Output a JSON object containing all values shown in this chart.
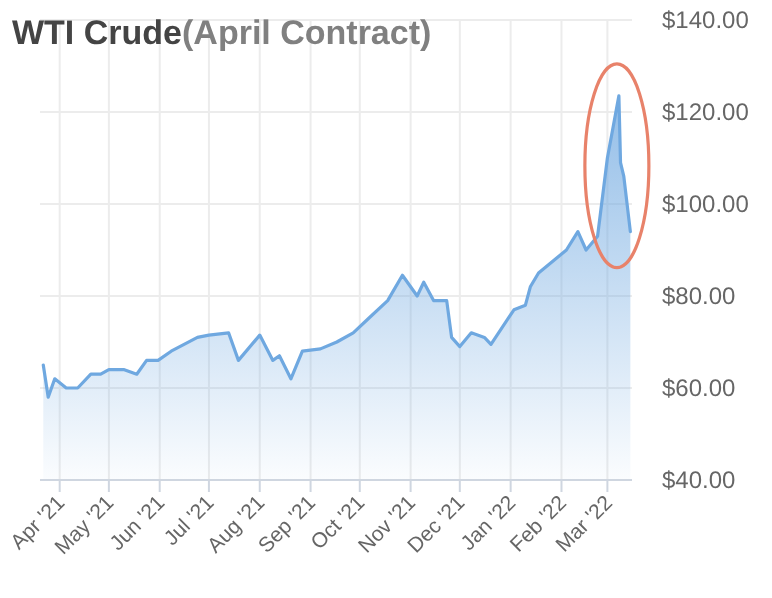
{
  "chart_data": {
    "type": "area",
    "title": "WTI Crude",
    "subtitle": "(April Contract)",
    "x": [
      "2021-03-22",
      "2021-03-25",
      "2021-03-29",
      "2021-04-05",
      "2021-04-12",
      "2021-04-20",
      "2021-04-26",
      "2021-05-01",
      "2021-05-10",
      "2021-05-18",
      "2021-05-24",
      "2021-05-31",
      "2021-06-08",
      "2021-06-24",
      "2021-07-01",
      "2021-07-13",
      "2021-07-19",
      "2021-08-01",
      "2021-08-09",
      "2021-08-13",
      "2021-08-20",
      "2021-08-27",
      "2021-09-07",
      "2021-09-17",
      "2021-09-27",
      "2021-10-06",
      "2021-10-18",
      "2021-10-27",
      "2021-11-05",
      "2021-11-09",
      "2021-11-15",
      "2021-11-23",
      "2021-11-26",
      "2021-12-01",
      "2021-12-08",
      "2021-12-16",
      "2021-12-20",
      "2022-01-03",
      "2022-01-10",
      "2022-01-13",
      "2022-01-18",
      "2022-02-04",
      "2022-02-11",
      "2022-02-16",
      "2022-02-23",
      "2022-03-01",
      "2022-03-08",
      "2022-03-09",
      "2022-03-11",
      "2022-03-15"
    ],
    "series": [
      {
        "color": "#6fa8e0",
        "values": [
          65,
          58,
          62,
          60,
          60,
          63,
          63,
          64,
          64,
          63,
          66,
          66,
          68,
          71,
          71.5,
          72,
          66,
          71.5,
          66,
          67,
          62,
          68,
          68.5,
          70,
          72,
          75,
          79,
          84.5,
          80,
          83,
          79,
          79,
          71,
          69,
          72,
          71,
          69.5,
          77,
          78,
          82,
          85,
          90,
          94,
          90,
          93,
          110,
          123.5,
          109,
          106,
          94
        ]
      }
    ],
    "xlim": [
      "2021-03-20",
      "2022-03-16"
    ],
    "xticks": [
      {
        "value": "2021-04-01",
        "label": "Apr '21"
      },
      {
        "value": "2021-05-01",
        "label": "May '21"
      },
      {
        "value": "2021-06-01",
        "label": "Jun '21"
      },
      {
        "value": "2021-07-01",
        "label": "Jul '21"
      },
      {
        "value": "2021-08-01",
        "label": "Aug '21"
      },
      {
        "value": "2021-09-01",
        "label": "Sep '21"
      },
      {
        "value": "2021-10-01",
        "label": "Oct '21"
      },
      {
        "value": "2021-11-01",
        "label": "Nov '21"
      },
      {
        "value": "2021-12-01",
        "label": "Dec '21"
      },
      {
        "value": "2022-01-01",
        "label": "Jan '22"
      },
      {
        "value": "2022-02-01",
        "label": "Feb '22"
      },
      {
        "value": "2022-03-01",
        "label": "Mar '22"
      }
    ],
    "ylim": [
      40,
      140
    ],
    "yticks": [
      {
        "value": 40,
        "label": "$40.00"
      },
      {
        "value": 60,
        "label": "$60.00"
      },
      {
        "value": 80,
        "label": "$80.00"
      },
      {
        "value": 100,
        "label": "$100.00"
      },
      {
        "value": 120,
        "label": "$120.00"
      },
      {
        "value": 140,
        "label": "$140.00"
      }
    ],
    "grid": true
  }
}
